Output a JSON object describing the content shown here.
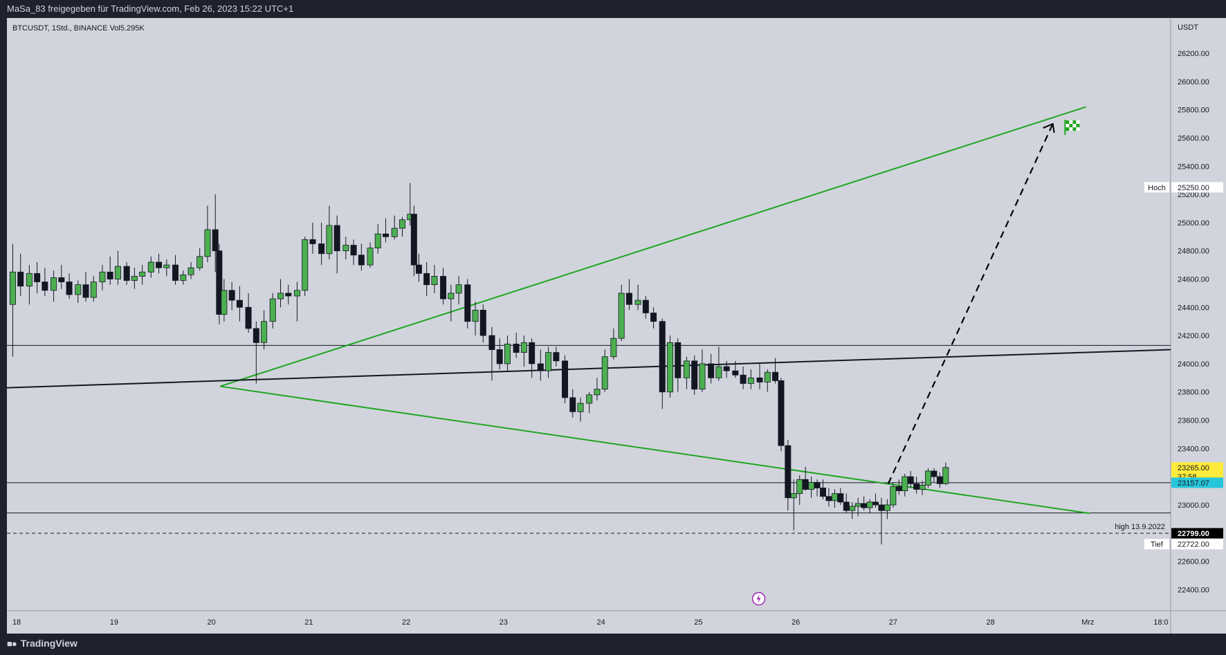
{
  "header": {
    "share_text": "MaSa_83 freigegeben für TradingView.com, Feb 26, 2023 15:22 UTC+1"
  },
  "footer": {
    "brand": "TradingView",
    "logo_icon": "tradingview-logo-icon"
  },
  "colors": {
    "frame": "#1e222d",
    "chart_bg": "#d1d4dc",
    "up_candle": "#4caf50",
    "down_candle": "#131722",
    "trendline_green": "#1fa523",
    "trendline_black": "#131722",
    "price_tag_yellow": "#ffeb3b",
    "price_tag_cyan": "#26c6da",
    "price_tag_black": "#000000"
  },
  "legend": {
    "text": "BTCUSDT, 1Std., BINANCE  Vol5.295K"
  },
  "chart_data": {
    "type": "candlestick",
    "symbol": "BTCUSDT",
    "interval": "1Std.",
    "exchange": "BINANCE",
    "volume_label": "Vol5.295K",
    "y_axis": {
      "unit": "USDT",
      "range": [
        22250,
        26450
      ],
      "ticks": [
        26200,
        26000,
        25800,
        25600,
        25400,
        25200,
        25000,
        24800,
        24600,
        24400,
        24200,
        24000,
        23800,
        23600,
        23400,
        23000,
        22600,
        22400
      ],
      "tick_labels": [
        "26200.00",
        "26000.00",
        "25800.00",
        "25600.00",
        "25400.00",
        "25200.00",
        "25000.00",
        "24800.00",
        "24600.00",
        "24400.00",
        "24200.00",
        "24000.00",
        "23800.00",
        "23600.00",
        "23400.00",
        "23000.00",
        "22600.00",
        "22400.00"
      ]
    },
    "x_axis": {
      "range": [
        17.9,
        29.85
      ],
      "ticks": [
        18,
        19,
        20,
        21,
        22,
        23,
        24,
        25,
        26,
        27,
        28,
        29,
        29.75
      ],
      "tick_labels": [
        "18",
        "19",
        "20",
        "21",
        "22",
        "23",
        "24",
        "25",
        "26",
        "27",
        "28",
        "Mrz",
        "18:0"
      ]
    },
    "price_tags": [
      {
        "label": "Hoch",
        "value": "25250.00",
        "price": 25250,
        "style": "white"
      },
      {
        "label": "",
        "value": "23265.00",
        "sub": "37:58",
        "price": 23265,
        "style": "yellow"
      },
      {
        "label": "",
        "value": "23157.07",
        "price": 23157.07,
        "style": "cyan"
      },
      {
        "label": "high 13.9.2022",
        "value": "22799.00",
        "price": 22799,
        "style": "black"
      },
      {
        "label": "Tief",
        "value": "22722.00",
        "price": 22722,
        "style": "white"
      }
    ],
    "horizontal_lines": [
      {
        "price": 24130,
        "style": "solid"
      },
      {
        "price": 23157.07,
        "style": "solid"
      },
      {
        "price": 22943,
        "style": "solid"
      },
      {
        "price": 22799,
        "style": "dashed"
      }
    ],
    "trend_lines": [
      {
        "color": "green",
        "x1": 20.09,
        "y1": 23840,
        "x2": 28.98,
        "y2": 25820
      },
      {
        "color": "green",
        "x1": 20.09,
        "y1": 23840,
        "x2": 29.02,
        "y2": 22940
      },
      {
        "color": "black",
        "x1": 17.9,
        "y1": 23830,
        "x2": 29.85,
        "y2": 24100
      }
    ],
    "projection": {
      "style": "dashed",
      "x1": 26.95,
      "y1": 23150,
      "x2": 28.64,
      "y2": 25700
    },
    "flag_icon": "checkered-flag-icon",
    "flag_position": {
      "x": 28.83,
      "y": 25680
    },
    "event_icon": "lightning-icon",
    "event_position": {
      "x": 25.62,
      "y": 22335
    },
    "candles": [
      {
        "t": 17.96,
        "o": 24420,
        "h": 24850,
        "l": 24050,
        "c": 24650
      },
      {
        "t": 18.04,
        "o": 24650,
        "h": 24780,
        "l": 24480,
        "c": 24550
      },
      {
        "t": 18.13,
        "o": 24550,
        "h": 24700,
        "l": 24420,
        "c": 24640
      },
      {
        "t": 18.21,
        "o": 24640,
        "h": 24720,
        "l": 24500,
        "c": 24580
      },
      {
        "t": 18.29,
        "o": 24580,
        "h": 24680,
        "l": 24480,
        "c": 24520
      },
      {
        "t": 18.38,
        "o": 24520,
        "h": 24660,
        "l": 24440,
        "c": 24610
      },
      {
        "t": 18.46,
        "o": 24610,
        "h": 24700,
        "l": 24530,
        "c": 24580
      },
      {
        "t": 18.54,
        "o": 24580,
        "h": 24640,
        "l": 24460,
        "c": 24490
      },
      {
        "t": 18.63,
        "o": 24490,
        "h": 24590,
        "l": 24430,
        "c": 24560
      },
      {
        "t": 18.71,
        "o": 24560,
        "h": 24650,
        "l": 24440,
        "c": 24470
      },
      {
        "t": 18.79,
        "o": 24470,
        "h": 24620,
        "l": 24440,
        "c": 24580
      },
      {
        "t": 18.88,
        "o": 24580,
        "h": 24700,
        "l": 24520,
        "c": 24650
      },
      {
        "t": 18.96,
        "o": 24650,
        "h": 24760,
        "l": 24560,
        "c": 24600
      },
      {
        "t": 19.04,
        "o": 24600,
        "h": 24800,
        "l": 24560,
        "c": 24690
      },
      {
        "t": 19.13,
        "o": 24690,
        "h": 24720,
        "l": 24560,
        "c": 24590
      },
      {
        "t": 19.21,
        "o": 24590,
        "h": 24680,
        "l": 24530,
        "c": 24620
      },
      {
        "t": 19.29,
        "o": 24620,
        "h": 24700,
        "l": 24560,
        "c": 24650
      },
      {
        "t": 19.38,
        "o": 24650,
        "h": 24760,
        "l": 24610,
        "c": 24720
      },
      {
        "t": 19.46,
        "o": 24720,
        "h": 24780,
        "l": 24640,
        "c": 24680
      },
      {
        "t": 19.54,
        "o": 24680,
        "h": 24740,
        "l": 24620,
        "c": 24700
      },
      {
        "t": 19.63,
        "o": 24700,
        "h": 24770,
        "l": 24560,
        "c": 24590
      },
      {
        "t": 19.71,
        "o": 24590,
        "h": 24660,
        "l": 24560,
        "c": 24630
      },
      {
        "t": 19.79,
        "o": 24630,
        "h": 24720,
        "l": 24600,
        "c": 24680
      },
      {
        "t": 19.88,
        "o": 24680,
        "h": 24820,
        "l": 24660,
        "c": 24760
      },
      {
        "t": 19.96,
        "o": 24760,
        "h": 25120,
        "l": 24720,
        "c": 24950
      },
      {
        "t": 20.04,
        "o": 24950,
        "h": 25200,
        "l": 24650,
        "c": 24800
      },
      {
        "t": 20.08,
        "o": 24800,
        "h": 24850,
        "l": 24280,
        "c": 24350
      },
      {
        "t": 20.13,
        "o": 24350,
        "h": 24600,
        "l": 24300,
        "c": 24520
      },
      {
        "t": 20.21,
        "o": 24520,
        "h": 24580,
        "l": 24380,
        "c": 24450
      },
      {
        "t": 20.29,
        "o": 24450,
        "h": 24550,
        "l": 24300,
        "c": 24400
      },
      {
        "t": 20.38,
        "o": 24400,
        "h": 24500,
        "l": 24220,
        "c": 24250
      },
      {
        "t": 20.46,
        "o": 24250,
        "h": 24300,
        "l": 23860,
        "c": 24150
      },
      {
        "t": 20.54,
        "o": 24150,
        "h": 24380,
        "l": 24100,
        "c": 24300
      },
      {
        "t": 20.63,
        "o": 24300,
        "h": 24500,
        "l": 24250,
        "c": 24460
      },
      {
        "t": 20.71,
        "o": 24460,
        "h": 24600,
        "l": 24400,
        "c": 24500
      },
      {
        "t": 20.79,
        "o": 24500,
        "h": 24560,
        "l": 24420,
        "c": 24480
      },
      {
        "t": 20.88,
        "o": 24480,
        "h": 24580,
        "l": 24300,
        "c": 24520
      },
      {
        "t": 20.96,
        "o": 24520,
        "h": 24900,
        "l": 24480,
        "c": 24880
      },
      {
        "t": 21.04,
        "o": 24880,
        "h": 25000,
        "l": 24780,
        "c": 24850
      },
      {
        "t": 21.13,
        "o": 24850,
        "h": 25000,
        "l": 24700,
        "c": 24780
      },
      {
        "t": 21.21,
        "o": 24780,
        "h": 25120,
        "l": 24740,
        "c": 24980
      },
      {
        "t": 21.29,
        "o": 24980,
        "h": 25050,
        "l": 24640,
        "c": 24800
      },
      {
        "t": 21.38,
        "o": 24800,
        "h": 24900,
        "l": 24740,
        "c": 24840
      },
      {
        "t": 21.46,
        "o": 24840,
        "h": 24880,
        "l": 24700,
        "c": 24770
      },
      {
        "t": 21.54,
        "o": 24770,
        "h": 24850,
        "l": 24660,
        "c": 24700
      },
      {
        "t": 21.63,
        "o": 24700,
        "h": 24860,
        "l": 24680,
        "c": 24820
      },
      {
        "t": 21.71,
        "o": 24820,
        "h": 24990,
        "l": 24780,
        "c": 24920
      },
      {
        "t": 21.79,
        "o": 24920,
        "h": 25030,
        "l": 24860,
        "c": 24900
      },
      {
        "t": 21.88,
        "o": 24900,
        "h": 25050,
        "l": 24880,
        "c": 24960
      },
      {
        "t": 21.96,
        "o": 24960,
        "h": 25040,
        "l": 24900,
        "c": 25020
      },
      {
        "t": 22.04,
        "o": 25020,
        "h": 25280,
        "l": 24980,
        "c": 25060
      },
      {
        "t": 22.08,
        "o": 25060,
        "h": 25120,
        "l": 24620,
        "c": 24700
      },
      {
        "t": 22.13,
        "o": 24700,
        "h": 24780,
        "l": 24580,
        "c": 24640
      },
      {
        "t": 22.21,
        "o": 24640,
        "h": 24720,
        "l": 24480,
        "c": 24560
      },
      {
        "t": 22.29,
        "o": 24560,
        "h": 24700,
        "l": 24500,
        "c": 24620
      },
      {
        "t": 22.38,
        "o": 24620,
        "h": 24680,
        "l": 24420,
        "c": 24460
      },
      {
        "t": 22.46,
        "o": 24460,
        "h": 24560,
        "l": 24300,
        "c": 24500
      },
      {
        "t": 22.54,
        "o": 24500,
        "h": 24620,
        "l": 24420,
        "c": 24560
      },
      {
        "t": 22.63,
        "o": 24560,
        "h": 24600,
        "l": 24250,
        "c": 24300
      },
      {
        "t": 22.71,
        "o": 24300,
        "h": 24440,
        "l": 24200,
        "c": 24380
      },
      {
        "t": 22.79,
        "o": 24380,
        "h": 24420,
        "l": 24150,
        "c": 24200
      },
      {
        "t": 22.88,
        "o": 24200,
        "h": 24260,
        "l": 23880,
        "c": 24100
      },
      {
        "t": 22.96,
        "o": 24100,
        "h": 24180,
        "l": 23960,
        "c": 24000
      },
      {
        "t": 23.04,
        "o": 24000,
        "h": 24200,
        "l": 23940,
        "c": 24140
      },
      {
        "t": 23.13,
        "o": 24140,
        "h": 24220,
        "l": 24040,
        "c": 24080
      },
      {
        "t": 23.21,
        "o": 24080,
        "h": 24200,
        "l": 23980,
        "c": 24150
      },
      {
        "t": 23.29,
        "o": 24150,
        "h": 24180,
        "l": 23900,
        "c": 24000
      },
      {
        "t": 23.38,
        "o": 24000,
        "h": 24100,
        "l": 23880,
        "c": 23950
      },
      {
        "t": 23.46,
        "o": 23950,
        "h": 24120,
        "l": 23900,
        "c": 24080
      },
      {
        "t": 23.54,
        "o": 24080,
        "h": 24120,
        "l": 23980,
        "c": 24020
      },
      {
        "t": 23.63,
        "o": 24020,
        "h": 24060,
        "l": 23720,
        "c": 23760
      },
      {
        "t": 23.71,
        "o": 23760,
        "h": 23820,
        "l": 23620,
        "c": 23660
      },
      {
        "t": 23.79,
        "o": 23660,
        "h": 23760,
        "l": 23590,
        "c": 23720
      },
      {
        "t": 23.88,
        "o": 23720,
        "h": 23800,
        "l": 23650,
        "c": 23780
      },
      {
        "t": 23.96,
        "o": 23780,
        "h": 23900,
        "l": 23740,
        "c": 23820
      },
      {
        "t": 24.04,
        "o": 23820,
        "h": 24100,
        "l": 23800,
        "c": 24050
      },
      {
        "t": 24.13,
        "o": 24050,
        "h": 24250,
        "l": 24030,
        "c": 24180
      },
      {
        "t": 24.21,
        "o": 24180,
        "h": 24560,
        "l": 24160,
        "c": 24500
      },
      {
        "t": 24.29,
        "o": 24500,
        "h": 24600,
        "l": 24380,
        "c": 24420
      },
      {
        "t": 24.38,
        "o": 24420,
        "h": 24560,
        "l": 24380,
        "c": 24450
      },
      {
        "t": 24.46,
        "o": 24450,
        "h": 24480,
        "l": 24320,
        "c": 24360
      },
      {
        "t": 24.54,
        "o": 24360,
        "h": 24400,
        "l": 24250,
        "c": 24300
      },
      {
        "t": 24.63,
        "o": 24300,
        "h": 24320,
        "l": 23680,
        "c": 23800
      },
      {
        "t": 24.71,
        "o": 23800,
        "h": 24200,
        "l": 23760,
        "c": 24150
      },
      {
        "t": 24.79,
        "o": 24150,
        "h": 24180,
        "l": 23800,
        "c": 23900
      },
      {
        "t": 24.88,
        "o": 23900,
        "h": 24050,
        "l": 23820,
        "c": 24020
      },
      {
        "t": 24.96,
        "o": 24020,
        "h": 24060,
        "l": 23780,
        "c": 23820
      },
      {
        "t": 25.04,
        "o": 23820,
        "h": 24100,
        "l": 23800,
        "c": 24000
      },
      {
        "t": 25.13,
        "o": 24000,
        "h": 24070,
        "l": 23860,
        "c": 23900
      },
      {
        "t": 25.21,
        "o": 23900,
        "h": 24120,
        "l": 23880,
        "c": 23980
      },
      {
        "t": 25.29,
        "o": 23980,
        "h": 24020,
        "l": 23900,
        "c": 23950
      },
      {
        "t": 25.38,
        "o": 23950,
        "h": 24020,
        "l": 23900,
        "c": 23920
      },
      {
        "t": 25.46,
        "o": 23920,
        "h": 23980,
        "l": 23820,
        "c": 23860
      },
      {
        "t": 25.54,
        "o": 23860,
        "h": 23960,
        "l": 23820,
        "c": 23900
      },
      {
        "t": 25.63,
        "o": 23900,
        "h": 24000,
        "l": 23820,
        "c": 23870
      },
      {
        "t": 25.71,
        "o": 23870,
        "h": 23960,
        "l": 23800,
        "c": 23940
      },
      {
        "t": 25.79,
        "o": 23940,
        "h": 24040,
        "l": 23860,
        "c": 23880
      },
      {
        "t": 25.85,
        "o": 23880,
        "h": 23900,
        "l": 23380,
        "c": 23420
      },
      {
        "t": 25.92,
        "o": 23420,
        "h": 23460,
        "l": 22960,
        "c": 23050
      },
      {
        "t": 25.98,
        "o": 23050,
        "h": 23180,
        "l": 22820,
        "c": 23080
      },
      {
        "t": 26.04,
        "o": 23080,
        "h": 23210,
        "l": 23000,
        "c": 23180
      },
      {
        "t": 26.1,
        "o": 23180,
        "h": 23270,
        "l": 23100,
        "c": 23110
      },
      {
        "t": 26.16,
        "o": 23110,
        "h": 23200,
        "l": 23050,
        "c": 23160
      },
      {
        "t": 26.22,
        "o": 23160,
        "h": 23180,
        "l": 23060,
        "c": 23120
      },
      {
        "t": 26.28,
        "o": 23120,
        "h": 23180,
        "l": 23040,
        "c": 23060
      },
      {
        "t": 26.34,
        "o": 23060,
        "h": 23120,
        "l": 22990,
        "c": 23030
      },
      {
        "t": 26.4,
        "o": 23030,
        "h": 23110,
        "l": 22980,
        "c": 23080
      },
      {
        "t": 26.46,
        "o": 23080,
        "h": 23120,
        "l": 23000,
        "c": 23020
      },
      {
        "t": 26.52,
        "o": 23020,
        "h": 23080,
        "l": 22940,
        "c": 22960
      },
      {
        "t": 26.58,
        "o": 22960,
        "h": 23020,
        "l": 22900,
        "c": 22990
      },
      {
        "t": 26.64,
        "o": 22990,
        "h": 23050,
        "l": 22920,
        "c": 23010
      },
      {
        "t": 26.7,
        "o": 23010,
        "h": 23060,
        "l": 22960,
        "c": 22980
      },
      {
        "t": 26.76,
        "o": 22980,
        "h": 23040,
        "l": 22940,
        "c": 23020
      },
      {
        "t": 26.82,
        "o": 23020,
        "h": 23080,
        "l": 22980,
        "c": 23000
      },
      {
        "t": 26.88,
        "o": 23000,
        "h": 23050,
        "l": 22720,
        "c": 22960
      },
      {
        "t": 26.94,
        "o": 22960,
        "h": 23040,
        "l": 22900,
        "c": 23000
      },
      {
        "t": 27.0,
        "o": 23000,
        "h": 23160,
        "l": 22980,
        "c": 23130
      },
      {
        "t": 27.06,
        "o": 23130,
        "h": 23180,
        "l": 23070,
        "c": 23100
      },
      {
        "t": 27.12,
        "o": 23100,
        "h": 23220,
        "l": 23060,
        "c": 23200
      },
      {
        "t": 27.18,
        "o": 23200,
        "h": 23240,
        "l": 23120,
        "c": 23150
      },
      {
        "t": 27.24,
        "o": 23150,
        "h": 23200,
        "l": 23080,
        "c": 23110
      },
      {
        "t": 27.3,
        "o": 23110,
        "h": 23170,
        "l": 23070,
        "c": 23140
      },
      {
        "t": 27.36,
        "o": 23140,
        "h": 23260,
        "l": 23120,
        "c": 23240
      },
      {
        "t": 27.42,
        "o": 23240,
        "h": 23260,
        "l": 23160,
        "c": 23200
      },
      {
        "t": 27.48,
        "o": 23200,
        "h": 23230,
        "l": 23120,
        "c": 23150
      },
      {
        "t": 27.54,
        "o": 23150,
        "h": 23300,
        "l": 23140,
        "c": 23265
      }
    ]
  }
}
